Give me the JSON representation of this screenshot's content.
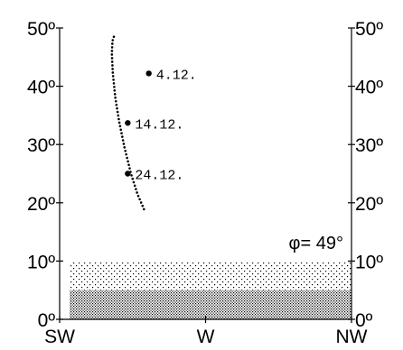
{
  "chart_data": {
    "type": "scatter",
    "title": "",
    "xlabel": "",
    "ylabel": "",
    "x_ticks": [
      {
        "label": "SW",
        "value": 225
      },
      {
        "label": "W",
        "value": 270
      },
      {
        "label": "NW",
        "value": 315
      }
    ],
    "y_ticks": [
      "0º",
      "10º",
      "20º",
      "30º",
      "40º",
      "50º"
    ],
    "xlim": [
      225,
      315
    ],
    "ylim": [
      0,
      50
    ],
    "latitude_label": "φ= 49°",
    "horizon_bands": [
      {
        "name": "",
        "from": 0,
        "to": 5,
        "pattern": "dense"
      },
      {
        "name": "",
        "from": 5,
        "to": 10,
        "pattern": "sparse"
      }
    ],
    "series": [
      {
        "name": "",
        "style": "dotted",
        "x": [
          251.0,
          249.0,
          247.0,
          245.0,
          243.4,
          242.2,
          241.4,
          241.1,
          241.3,
          241.9
        ],
        "y": [
          18.9,
          21.5,
          25.0,
          29.5,
          33.8,
          37.9,
          42.2,
          45.6,
          47.8,
          48.8
        ]
      }
    ],
    "marked_points": [
      {
        "label": "4.12.",
        "x": 252.5,
        "y": 42.2
      },
      {
        "label": "14.12.",
        "x": 246.0,
        "y": 33.7
      },
      {
        "label": "24.12.",
        "x": 246.0,
        "y": 25.0
      }
    ]
  }
}
